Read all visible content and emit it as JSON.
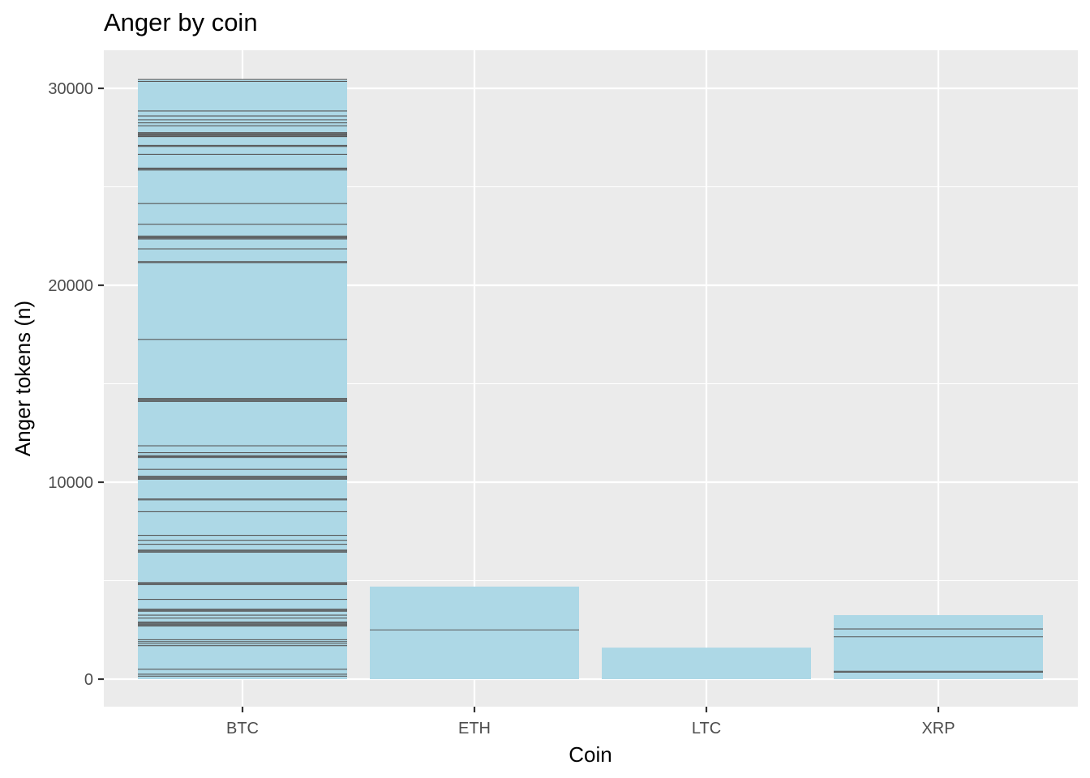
{
  "chart_data": {
    "type": "bar",
    "title": "Anger by coin",
    "xlabel": "Coin",
    "ylabel": "Anger tokens (n)",
    "categories": [
      "BTC",
      "ETH",
      "LTC",
      "XRP"
    ],
    "values": [
      30450,
      4700,
      1600,
      3250
    ],
    "ylim": [
      -1500,
      32000
    ],
    "yticks": [
      0,
      10000,
      20000,
      30000
    ],
    "grid": true,
    "legend": "none",
    "stacked": true,
    "colors": {
      "bar_fill": "#add8e6",
      "segment_outline": "#595959",
      "panel_background": "#ebebeb",
      "grid": "#ffffff",
      "tick_text": "#4d4d4d"
    },
    "segment_boundaries": {
      "BTC": [
        150,
        250,
        500,
        1700,
        1800,
        1900,
        2000,
        2700,
        2750,
        2800,
        2850,
        2900,
        3100,
        3250,
        3450,
        3500,
        3550,
        4050,
        4800,
        4850,
        4900,
        6450,
        6500,
        6550,
        6850,
        7050,
        7300,
        8500,
        9100,
        9150,
        10150,
        10200,
        10250,
        10300,
        10650,
        11250,
        11300,
        11350,
        11500,
        11850,
        14100,
        14150,
        14200,
        14250,
        17250,
        21150,
        21200,
        21850,
        22350,
        22400,
        22450,
        22500,
        23100,
        24150,
        25850,
        25900,
        25950,
        26650,
        27050,
        27100,
        27550,
        27600,
        27650,
        27700,
        27750,
        28100,
        28250,
        28400,
        28600,
        28850,
        30350,
        30450
      ],
      "ETH": [
        2500
      ],
      "XRP": [
        350,
        400,
        2150,
        2550
      ]
    }
  }
}
